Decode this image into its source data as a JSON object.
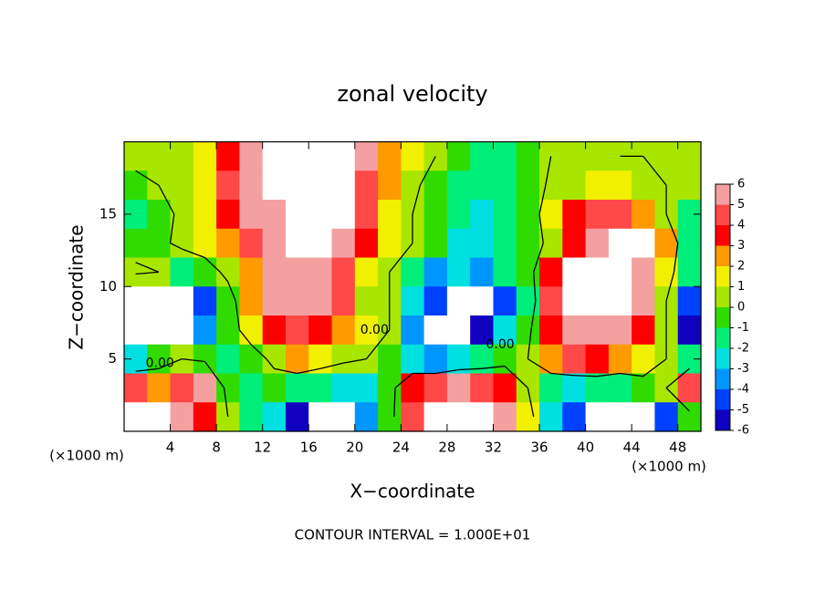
{
  "chart_data": {
    "type": "contour",
    "title": "zonal velocity",
    "xlabel": "X−coordinate",
    "ylabel": "Z−coordinate",
    "x_unit_labels": [
      "(×1000 m)",
      "(×1000 m)"
    ],
    "footer": "CONTOUR INTERVAL = 1.000E+01",
    "xlim": [
      0,
      50
    ],
    "ylim": [
      0,
      20
    ],
    "xticks": [
      4,
      8,
      12,
      16,
      20,
      24,
      28,
      32,
      36,
      40,
      44,
      48
    ],
    "yticks": [
      5,
      10,
      15
    ],
    "x": [
      1,
      3,
      5,
      7,
      9,
      11,
      13,
      15,
      17,
      19,
      21,
      23,
      25,
      27,
      29,
      31,
      33,
      35,
      37,
      39,
      41,
      43,
      45,
      47,
      49
    ],
    "z": [
      19,
      17,
      15,
      13,
      11,
      9,
      7,
      5,
      3,
      1
    ],
    "values": [
      [
        0.5,
        0.5,
        0.5,
        1,
        3,
        5,
        7,
        7,
        7,
        7,
        5,
        2,
        1,
        0,
        -1,
        -2,
        -2,
        -1,
        0,
        0.5,
        0.5,
        0,
        0,
        0,
        0
      ],
      [
        -0.5,
        0,
        0.5,
        1.5,
        4,
        5,
        7,
        7,
        7,
        7,
        4,
        2,
        0.5,
        -1,
        -2,
        -2,
        -1.5,
        -1,
        0.3,
        0.5,
        1,
        1,
        0.5,
        0,
        0
      ],
      [
        -2,
        -1,
        0.5,
        1,
        3,
        5,
        6,
        7,
        7,
        7,
        4,
        1.5,
        0,
        -1,
        -2,
        -3,
        -2,
        -1,
        1,
        3,
        4,
        4,
        2,
        0,
        -2
      ],
      [
        -1,
        -0.5,
        0.5,
        1,
        2,
        4,
        5,
        7,
        7,
        6,
        3,
        1,
        0,
        -1,
        -3,
        -3,
        -2,
        -1,
        0.5,
        3,
        5,
        6.5,
        6.5,
        2,
        -2
      ],
      [
        0.5,
        0,
        -2,
        -1,
        0.5,
        2,
        5,
        5,
        5,
        4,
        1.5,
        0,
        -2,
        -4,
        -3,
        -4,
        -2,
        -1,
        3,
        7,
        7,
        7,
        5,
        1,
        -2
      ],
      [
        -7,
        -7,
        -7,
        -5,
        -1,
        2,
        5,
        5,
        5,
        4,
        0.5,
        0,
        -3,
        -5,
        -7,
        -7,
        -5,
        -2,
        4,
        7,
        7,
        7,
        5,
        0,
        -5
      ],
      [
        -7,
        -7,
        -6.5,
        -4,
        -1,
        1,
        3,
        4,
        3,
        2,
        1,
        0,
        -4,
        -7,
        -7,
        -6,
        -3,
        -0.5,
        3,
        5,
        6,
        5,
        3,
        0,
        -6
      ],
      [
        -3,
        -1,
        0,
        -0.5,
        -2,
        -1,
        0.5,
        2,
        1,
        0.5,
        0,
        -1,
        -3,
        -4,
        -3,
        -2,
        -1,
        0,
        2,
        4,
        3,
        2,
        1.5,
        0,
        -2
      ],
      [
        4,
        2,
        4,
        5,
        -1,
        -2,
        -1,
        -2,
        -2,
        -3,
        -3,
        -1,
        3,
        4,
        5,
        4,
        3,
        0,
        -2,
        -3,
        -2,
        -2,
        -1,
        0,
        4
      ],
      [
        7,
        7,
        5,
        3,
        0,
        -2,
        -3,
        -6,
        -7,
        -7,
        -4,
        -1,
        4,
        7,
        7,
        7,
        6,
        1,
        -3,
        -5,
        -7,
        -7,
        -7,
        -5,
        -1
      ]
    ],
    "colorbar_ticks": [
      6,
      5,
      4,
      3,
      2,
      1,
      0,
      -1,
      -2,
      -3,
      -4,
      -5,
      -6
    ],
    "colorbar_colors": [
      "#f4a0a0",
      "#ff4848",
      "#ff0000",
      "#ff9a00",
      "#f0f000",
      "#a8e600",
      "#30dc00",
      "#00ee7a",
      "#00e0e0",
      "#0096ff",
      "#0040ff",
      "#1000c0",
      "#8000b0"
    ],
    "out_of_range_color": "#ffffff",
    "contour_color": "#000000",
    "contour_level": 0,
    "contour_labels": [
      {
        "text": "0.00",
        "x": 3.1,
        "z": 4.7
      },
      {
        "text": "0.00",
        "x": 21.7,
        "z": 7.0
      },
      {
        "text": "0.00",
        "x": 32.6,
        "z": 6.0
      }
    ]
  }
}
